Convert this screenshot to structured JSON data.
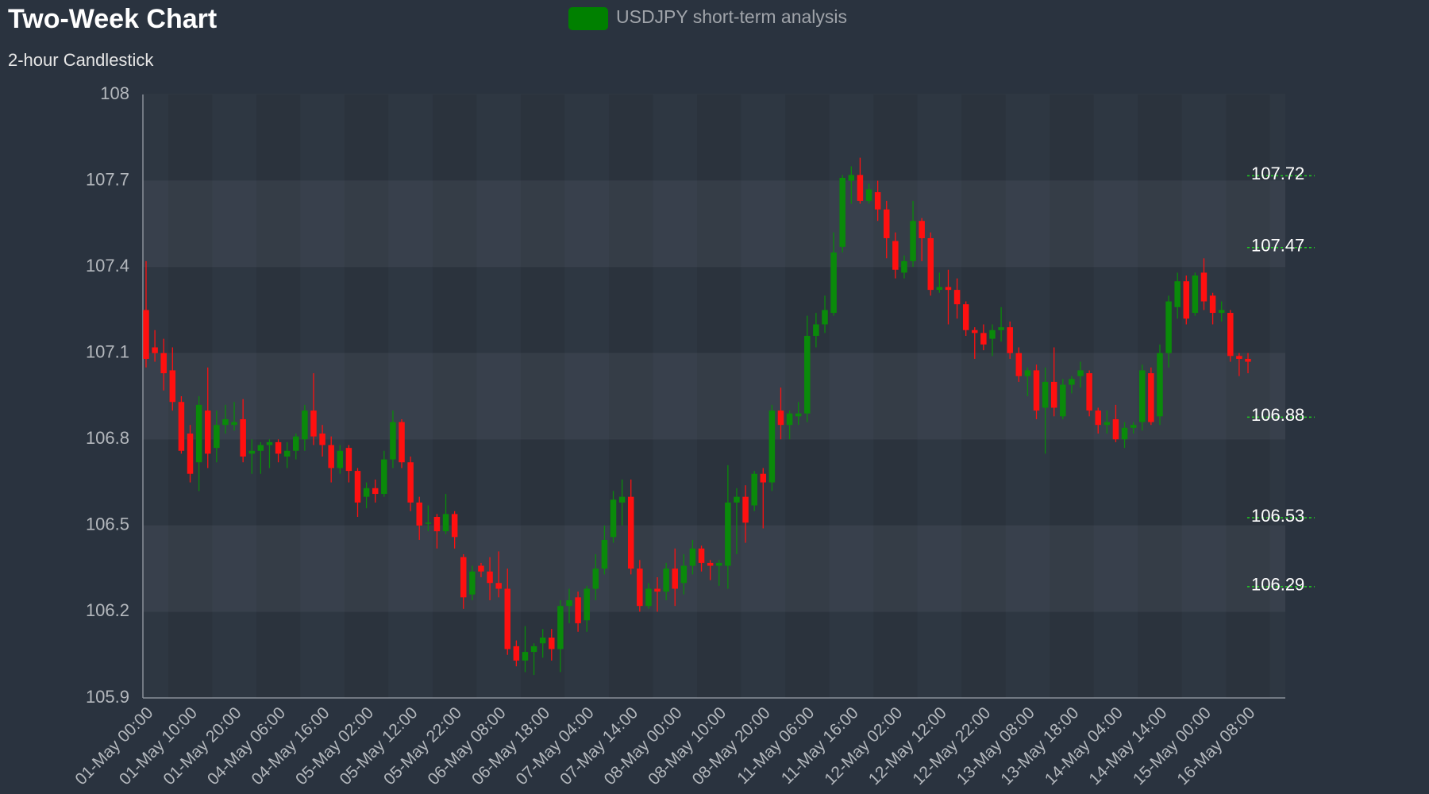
{
  "chart_data": {
    "type": "candlestick",
    "title": "Two-Week Chart",
    "subtitle": "2-hour Candlestick",
    "up_color": "#0a8a0a",
    "down_color": "#ff1010",
    "level_color": "#22cc22",
    "grid": true,
    "ylim": [
      105.9,
      108
    ],
    "yticks": [
      105.9,
      106.2,
      106.5,
      106.8,
      107.1,
      107.4,
      107.7,
      108
    ],
    "levels": [
      107.72,
      107.47,
      106.88,
      106.53,
      106.29
    ],
    "categories": [
      "01-May 00:00",
      null,
      null,
      null,
      null,
      "01-May 10:00",
      null,
      null,
      null,
      null,
      "01-May 20:00",
      null,
      null,
      null,
      null,
      "04-May 06:00",
      null,
      null,
      null,
      null,
      "04-May 16:00",
      null,
      null,
      null,
      null,
      "05-May 02:00",
      null,
      null,
      null,
      null,
      "05-May 12:00",
      null,
      null,
      null,
      null,
      "05-May 22:00",
      null,
      null,
      null,
      null,
      "06-May 08:00",
      null,
      null,
      null,
      null,
      "06-May 18:00",
      null,
      null,
      null,
      null,
      "07-May 04:00",
      null,
      null,
      null,
      null,
      "07-May 14:00",
      null,
      null,
      null,
      null,
      "08-May 00:00",
      null,
      null,
      null,
      null,
      "08-May 10:00",
      null,
      null,
      null,
      null,
      "08-May 20:00",
      null,
      null,
      null,
      null,
      "11-May 06:00",
      null,
      null,
      null,
      null,
      "11-May 16:00",
      null,
      null,
      null,
      null,
      "12-May 02:00",
      null,
      null,
      null,
      null,
      "12-May 12:00",
      null,
      null,
      null,
      null,
      "12-May 22:00",
      null,
      null,
      null,
      null,
      "13-May 08:00",
      null,
      null,
      null,
      null,
      "13-May 18:00",
      null,
      null,
      null,
      null,
      "14-May 04:00",
      null,
      null,
      null,
      null,
      "14-May 14:00",
      null,
      null,
      null,
      null,
      "15-May 00:00",
      null,
      null,
      null,
      null,
      "16-May 08:00"
    ],
    "series": [
      {
        "name": "USDJPY short-term analysis",
        "color": "#008000",
        "open": [
          107.25,
          107.12,
          107.1,
          107.04,
          106.93,
          106.82,
          106.72,
          106.9,
          106.77,
          106.85,
          106.85,
          106.87,
          106.75,
          106.76,
          106.78,
          106.79,
          106.74,
          106.76,
          106.8,
          106.9,
          106.82,
          106.78,
          106.7,
          106.77,
          106.69,
          106.6,
          106.63,
          106.61,
          106.73,
          106.86,
          106.72,
          106.58,
          106.51,
          106.53,
          106.48,
          106.54,
          106.39,
          106.26,
          106.36,
          106.34,
          106.3,
          106.28,
          106.08,
          106.03,
          106.06,
          106.09,
          106.11,
          106.07,
          106.22,
          106.25,
          106.17,
          106.28,
          106.35,
          106.46,
          106.58,
          106.6,
          106.35,
          106.22,
          106.28,
          106.27,
          106.35,
          106.3,
          106.36,
          106.42,
          106.37,
          106.36,
          106.36,
          106.58,
          106.6,
          106.57,
          106.68,
          106.65,
          106.9,
          106.85,
          106.88,
          106.89,
          107.16,
          107.2,
          107.24,
          107.47,
          107.7,
          107.72,
          107.63,
          107.66,
          107.6,
          107.49,
          107.38,
          107.42,
          107.56,
          107.5,
          107.32,
          107.33,
          107.32,
          107.27,
          107.18,
          107.17,
          107.15,
          107.18,
          107.19,
          107.1,
          107.02,
          107.04,
          106.91,
          107.0,
          106.88,
          106.99,
          107.02,
          107.03,
          106.9,
          106.85,
          106.87,
          106.8,
          106.84,
          106.86,
          107.03,
          106.88,
          107.1,
          107.26,
          107.35,
          107.24,
          107.38,
          107.3,
          107.24,
          107.24,
          107.09,
          107.08
        ],
        "high": [
          107.42,
          107.18,
          107.15,
          107.12,
          106.95,
          106.85,
          106.95,
          107.05,
          106.9,
          106.92,
          106.93,
          106.94,
          106.8,
          106.79,
          106.8,
          106.8,
          106.79,
          106.82,
          106.92,
          107.03,
          106.85,
          106.81,
          106.78,
          106.78,
          106.7,
          106.65,
          106.66,
          106.76,
          106.9,
          106.87,
          106.74,
          106.6,
          106.57,
          106.54,
          106.61,
          106.55,
          106.4,
          106.36,
          106.37,
          106.39,
          106.41,
          106.35,
          106.1,
          106.15,
          106.09,
          106.14,
          106.14,
          106.24,
          106.28,
          106.27,
          106.29,
          106.4,
          106.5,
          106.62,
          106.66,
          106.66,
          106.38,
          106.3,
          106.32,
          106.37,
          106.42,
          106.4,
          106.45,
          106.43,
          106.38,
          106.38,
          106.71,
          106.63,
          106.64,
          106.69,
          106.7,
          106.92,
          106.98,
          106.9,
          106.93,
          107.23,
          107.24,
          107.3,
          107.52,
          107.72,
          107.75,
          107.78,
          107.69,
          107.7,
          107.63,
          107.52,
          107.44,
          107.63,
          107.57,
          107.52,
          107.38,
          107.39,
          107.36,
          107.28,
          107.19,
          107.2,
          107.2,
          107.26,
          107.21,
          107.12,
          107.05,
          107.06,
          107.05,
          107.12,
          107.01,
          107.02,
          107.07,
          107.04,
          106.91,
          106.9,
          106.92,
          106.86,
          106.86,
          107.06,
          107.05,
          107.13,
          107.3,
          107.38,
          107.37,
          107.38,
          107.43,
          107.31,
          107.28,
          107.25,
          107.1,
          107.1
        ],
        "low": [
          107.05,
          107.07,
          106.97,
          106.9,
          106.75,
          106.65,
          106.62,
          106.7,
          106.72,
          106.82,
          106.83,
          106.72,
          106.68,
          106.68,
          106.7,
          106.72,
          106.7,
          106.73,
          106.76,
          106.78,
          106.74,
          106.65,
          106.68,
          106.65,
          106.53,
          106.56,
          106.58,
          106.6,
          106.7,
          106.7,
          106.55,
          106.45,
          106.48,
          106.42,
          106.47,
          106.42,
          106.21,
          106.24,
          106.32,
          106.24,
          106.25,
          106.05,
          106.01,
          105.99,
          105.98,
          106.04,
          106.03,
          105.99,
          106.16,
          106.13,
          106.13,
          106.24,
          106.33,
          106.44,
          106.5,
          106.33,
          106.2,
          106.21,
          106.2,
          106.24,
          106.22,
          106.26,
          106.33,
          106.34,
          106.31,
          106.29,
          106.28,
          106.4,
          106.44,
          106.55,
          106.49,
          106.62,
          106.8,
          106.8,
          106.85,
          106.86,
          107.12,
          107.17,
          107.23,
          107.45,
          107.62,
          107.62,
          107.62,
          107.56,
          107.43,
          107.36,
          107.36,
          107.4,
          107.42,
          107.3,
          107.31,
          107.2,
          107.22,
          107.16,
          107.08,
          107.11,
          107.09,
          107.14,
          107.08,
          107.0,
          106.95,
          106.87,
          106.75,
          106.88,
          106.87,
          106.96,
          106.98,
          106.88,
          106.82,
          106.82,
          106.79,
          106.77,
          106.82,
          106.83,
          106.85,
          106.85,
          107.05,
          107.22,
          107.2,
          107.23,
          107.25,
          107.2,
          107.21,
          107.07,
          107.02,
          107.03
        ],
        "close": [
          107.08,
          107.1,
          107.03,
          106.93,
          106.76,
          106.68,
          106.92,
          106.75,
          106.85,
          106.87,
          106.86,
          106.74,
          106.76,
          106.78,
          106.79,
          106.75,
          106.76,
          106.81,
          106.9,
          106.81,
          106.78,
          106.7,
          106.76,
          106.69,
          106.58,
          106.63,
          106.61,
          106.73,
          106.86,
          106.72,
          106.58,
          106.5,
          106.51,
          106.48,
          106.54,
          106.46,
          106.25,
          106.34,
          106.34,
          106.3,
          106.28,
          106.07,
          106.03,
          106.06,
          106.08,
          106.11,
          106.07,
          106.22,
          106.24,
          106.16,
          106.28,
          106.35,
          106.45,
          106.59,
          106.6,
          106.35,
          106.22,
          106.28,
          106.27,
          106.35,
          106.28,
          106.36,
          106.42,
          106.37,
          106.36,
          106.37,
          106.58,
          106.6,
          106.51,
          106.68,
          106.65,
          106.9,
          106.85,
          106.89,
          106.89,
          107.16,
          107.2,
          107.25,
          107.45,
          107.71,
          107.72,
          107.63,
          107.67,
          107.6,
          107.5,
          107.39,
          107.42,
          107.56,
          107.5,
          107.32,
          107.33,
          107.32,
          107.27,
          107.18,
          107.17,
          107.13,
          107.18,
          107.19,
          107.1,
          107.02,
          107.04,
          106.9,
          107.0,
          106.91,
          106.99,
          107.01,
          107.04,
          106.9,
          106.85,
          106.86,
          106.8,
          106.84,
          106.85,
          107.04,
          106.86,
          107.1,
          107.28,
          107.35,
          107.22,
          107.37,
          107.28,
          107.24,
          107.25,
          107.09,
          107.08,
          107.07
        ]
      }
    ]
  }
}
